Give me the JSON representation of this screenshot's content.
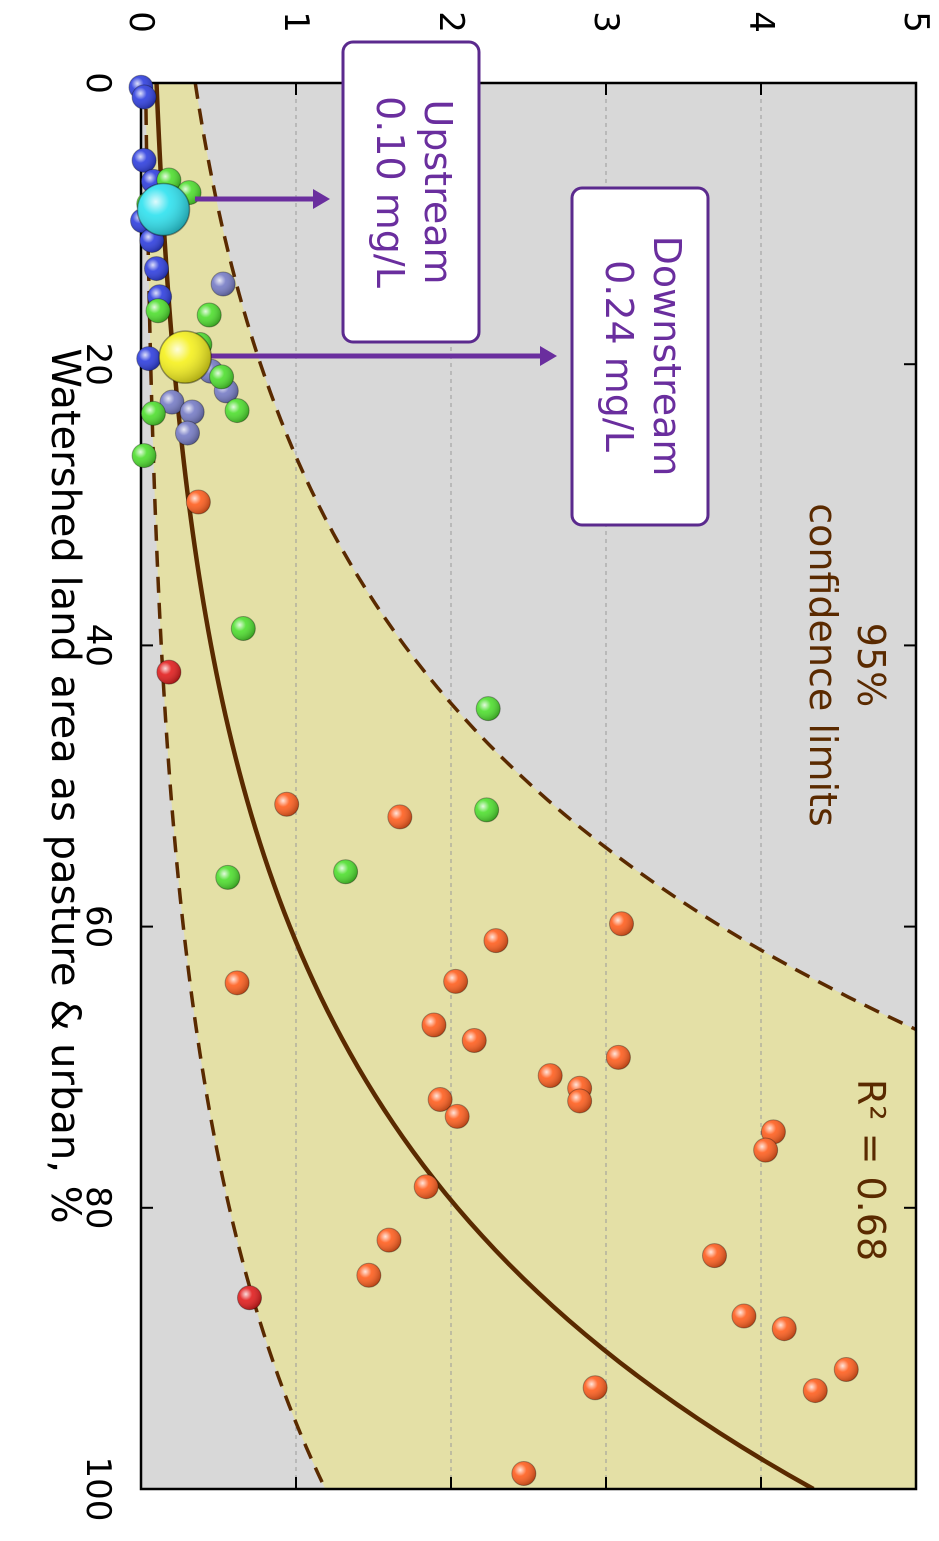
{
  "chart_data": {
    "type": "scatter",
    "orientation": "rotated 90 degrees clockwise",
    "x_axis": {
      "label": "Watershed land area as pasture & urban, %",
      "range": [
        0,
        100
      ],
      "ticks": [
        0,
        20,
        40,
        60,
        80,
        100
      ]
    },
    "y_axis": {
      "label": "",
      "range": [
        0,
        5
      ],
      "ticks": [
        0,
        1,
        2,
        3,
        4,
        5
      ],
      "gridlines": true
    },
    "annotations": {
      "r_squared": "R² = 0.68",
      "confidence_line1": "95%",
      "confidence_line2": "confidence limits"
    },
    "callouts": [
      {
        "line1": "Upstream",
        "line2": "0.10 mg/L",
        "x": 9.0,
        "y": 0.1
      },
      {
        "line1": "Downstream",
        "line2": "0.24 mg/L",
        "x": 19.5,
        "y": 0.24
      }
    ],
    "fit_curve": {
      "type": "exponential",
      "a": 0.1,
      "b": 0.0377
    },
    "confidence_band": {
      "upper_a": 0.35,
      "upper_b": 0.0395,
      "lower_a": 0.03,
      "lower_b": 0.0368
    },
    "colors": {
      "background": "#d8d8d8",
      "band": "#e4e0a6",
      "curve": "#5a2a00",
      "callout_border": "#5b2a8e",
      "callout_text": "#6a2e9e",
      "label_brown": "#5a2a00"
    },
    "series": [
      {
        "color": "#2233dd",
        "points": [
          [
            0.3,
            0.0
          ],
          [
            1.0,
            0.02
          ],
          [
            5.5,
            0.02
          ],
          [
            7.0,
            0.08
          ],
          [
            9.8,
            0.01
          ],
          [
            11.2,
            0.07
          ],
          [
            13.2,
            0.1
          ],
          [
            15.2,
            0.12
          ],
          [
            19.6,
            0.05
          ]
        ]
      },
      {
        "color": "#6e74c2",
        "points": [
          [
            14.3,
            0.53
          ],
          [
            20.5,
            0.45
          ],
          [
            21.9,
            0.55
          ],
          [
            22.7,
            0.2
          ],
          [
            23.4,
            0.33
          ],
          [
            24.9,
            0.3
          ]
        ]
      },
      {
        "color": "#44dd22",
        "points": [
          [
            6.9,
            0.18
          ],
          [
            7.8,
            0.31
          ],
          [
            8.6,
            0.05
          ],
          [
            16.2,
            0.11
          ],
          [
            16.5,
            0.44
          ],
          [
            18.6,
            0.38
          ],
          [
            20.9,
            0.52
          ],
          [
            23.3,
            0.62
          ],
          [
            23.5,
            0.08
          ],
          [
            26.5,
            0.02
          ],
          [
            38.8,
            0.66
          ],
          [
            44.5,
            2.24
          ],
          [
            51.7,
            2.23
          ],
          [
            56.1,
            1.32
          ],
          [
            56.5,
            0.56
          ]
        ]
      },
      {
        "color": "#ff5511",
        "points": [
          [
            29.8,
            0.37
          ],
          [
            51.3,
            0.94
          ],
          [
            52.2,
            1.67
          ],
          [
            59.8,
            3.1
          ],
          [
            61.0,
            2.29
          ],
          [
            63.9,
            2.03
          ],
          [
            64.0,
            0.62
          ],
          [
            67.0,
            1.89
          ],
          [
            68.1,
            2.15
          ],
          [
            69.3,
            3.08
          ],
          [
            70.6,
            2.64
          ],
          [
            71.5,
            2.83
          ],
          [
            72.3,
            1.93
          ],
          [
            72.4,
            2.83
          ],
          [
            73.5,
            2.04
          ],
          [
            74.6,
            4.08
          ],
          [
            75.9,
            4.03
          ],
          [
            78.5,
            1.84
          ],
          [
            82.3,
            1.6
          ],
          [
            83.4,
            3.7
          ],
          [
            84.8,
            1.47
          ],
          [
            87.7,
            3.89
          ],
          [
            88.6,
            4.15
          ],
          [
            91.5,
            4.55
          ],
          [
            92.8,
            2.93
          ],
          [
            93.0,
            4.35
          ],
          [
            98.9,
            2.47
          ]
        ]
      },
      {
        "color": "#e01010",
        "points": [
          [
            41.9,
            0.18
          ],
          [
            86.4,
            0.7
          ]
        ]
      }
    ]
  }
}
